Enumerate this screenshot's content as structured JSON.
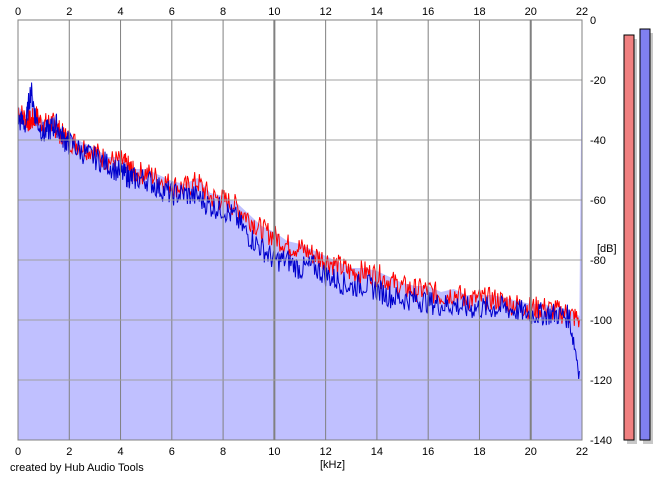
{
  "credit": "created by Hub Audio Tools",
  "chart_data": {
    "type": "area",
    "title": "",
    "xlabel": "[kHz]",
    "ylabel": "[dB]",
    "xlim": [
      0,
      22
    ],
    "ylim": [
      -140,
      0
    ],
    "xticks": [
      0,
      2,
      4,
      6,
      8,
      10,
      12,
      14,
      16,
      18,
      20,
      22
    ],
    "yticks": [
      0,
      -20,
      -40,
      -60,
      -80,
      -100,
      -120,
      -140
    ],
    "grid": true,
    "plot_background": "#c0c0ff",
    "series": [
      {
        "color": "#ff0000",
        "x": [
          0.0,
          0.3,
          0.5,
          0.7,
          1.0,
          1.3,
          1.5,
          1.8,
          2.0,
          2.5,
          3.0,
          3.5,
          4.0,
          4.3,
          4.5,
          5.0,
          5.5,
          6.0,
          6.5,
          7.0,
          7.5,
          8.0,
          8.5,
          9.0,
          9.5,
          10.0,
          10.5,
          11.0,
          11.5,
          12.0,
          12.5,
          13.0,
          13.5,
          14.0,
          14.5,
          15.0,
          15.5,
          16.0,
          16.5,
          17.0,
          17.5,
          18.0,
          18.5,
          19.0,
          19.5,
          20.0,
          20.5,
          21.0,
          21.5,
          21.9
        ],
        "y": [
          -30,
          -33,
          -34,
          -32,
          -35,
          -34,
          -36,
          -39,
          -40,
          -42,
          -44,
          -47,
          -47,
          -49,
          -51,
          -51,
          -53,
          -55,
          -56,
          -54,
          -59,
          -60,
          -62,
          -66,
          -70,
          -72,
          -75,
          -76,
          -78,
          -80,
          -82,
          -84,
          -84,
          -85,
          -87,
          -89,
          -90,
          -90,
          -92,
          -91,
          -93,
          -93,
          -93,
          -94,
          -95,
          -96,
          -96,
          -97,
          -98,
          -100
        ]
      },
      {
        "color": "#0000cc",
        "x": [
          0.0,
          0.3,
          0.5,
          0.7,
          1.0,
          1.3,
          1.5,
          1.8,
          2.0,
          2.5,
          3.0,
          3.5,
          4.0,
          4.3,
          4.5,
          5.0,
          5.5,
          6.0,
          6.5,
          7.0,
          7.5,
          8.0,
          8.5,
          9.0,
          9.5,
          10.0,
          10.5,
          11.0,
          11.5,
          12.0,
          12.5,
          13.0,
          13.5,
          14.0,
          14.5,
          15.0,
          15.5,
          16.0,
          16.5,
          17.0,
          17.5,
          18.0,
          18.5,
          19.0,
          19.5,
          20.0,
          20.5,
          21.0,
          21.5,
          21.9
        ],
        "y": [
          -33,
          -35,
          -23,
          -33,
          -38,
          -36,
          -35,
          -40,
          -41,
          -44,
          -46,
          -48,
          -51,
          -52,
          -53,
          -53,
          -56,
          -58,
          -58,
          -59,
          -62,
          -63,
          -66,
          -72,
          -76,
          -80,
          -80,
          -83,
          -82,
          -85,
          -87,
          -89,
          -88,
          -90,
          -92,
          -93,
          -93,
          -94,
          -95,
          -95,
          -96,
          -96,
          -96,
          -96,
          -97,
          -98,
          -98,
          -98,
          -99,
          -117
        ]
      }
    ]
  },
  "meters": [
    {
      "color": "#f08080",
      "level": -5
    },
    {
      "color": "#8080f0",
      "level": -3
    }
  ]
}
